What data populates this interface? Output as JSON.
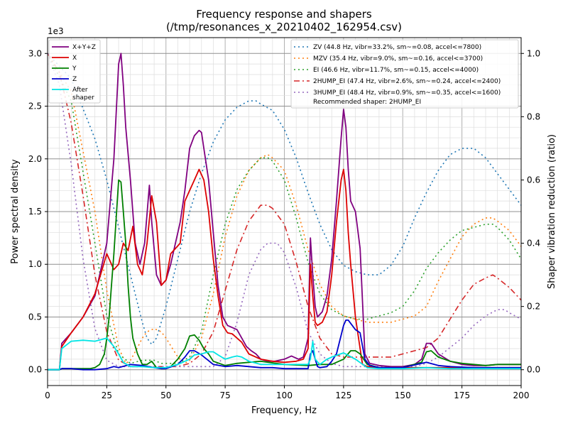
{
  "chart_data": {
    "type": "line",
    "title": "Frequency response and shapers",
    "subtitle": "(/tmp/resonances_x_20210402_162954.csv)",
    "xlabel": "Frequency, Hz",
    "ylabel": "Power spectral density",
    "y2label": "Shaper vibration reduction (ratio)",
    "y_multiplier_label": "1e3",
    "xlim": [
      0,
      200
    ],
    "ylim": [
      -0.15,
      3.15
    ],
    "y2lim": [
      -0.05,
      1.05
    ],
    "xticks": [
      0,
      25,
      50,
      75,
      100,
      125,
      150,
      175,
      200
    ],
    "xtick_labels": [
      "0",
      "25",
      "50",
      "75",
      "100",
      "125",
      "150",
      "175",
      "200"
    ],
    "yticks": [
      0,
      0.5,
      1.0,
      1.5,
      2.0,
      2.5,
      3.0
    ],
    "ytick_labels": [
      "0.0",
      "0.5",
      "1.0",
      "1.5",
      "2.0",
      "2.5",
      "3.0"
    ],
    "y2ticks": [
      0,
      0.2,
      0.4,
      0.6,
      0.8,
      1.0
    ],
    "y2tick_labels": [
      "0.0",
      "0.2",
      "0.4",
      "0.6",
      "0.8",
      "1.0"
    ],
    "grid": true,
    "psd_series": [
      {
        "name": "X+Y+Z",
        "color": "#800080",
        "x": [
          0,
          5,
          6,
          10,
          15,
          20,
          25,
          28,
          30,
          31,
          32,
          33,
          35,
          37,
          39,
          41,
          43,
          44,
          46,
          48,
          50,
          52,
          54,
          56,
          58,
          60,
          62,
          64,
          65,
          66,
          68,
          70,
          72,
          74,
          76,
          78,
          80,
          82,
          84,
          86,
          88,
          90,
          93,
          96,
          100,
          103,
          106,
          108,
          110,
          111,
          112,
          113,
          114,
          116,
          118,
          120,
          122,
          124,
          125,
          126,
          127,
          128,
          130,
          132,
          134,
          136,
          140,
          145,
          150,
          155,
          158,
          160,
          162,
          165,
          170,
          175,
          180,
          185,
          190,
          195,
          200
        ],
        "y": [
          0,
          0,
          0.25,
          0.35,
          0.5,
          0.7,
          1.2,
          2.0,
          2.9,
          3.0,
          2.7,
          2.3,
          1.8,
          1.2,
          1.0,
          1.2,
          1.75,
          1.4,
          0.9,
          0.8,
          0.85,
          1.0,
          1.2,
          1.4,
          1.7,
          2.1,
          2.22,
          2.27,
          2.25,
          2.1,
          1.8,
          1.3,
          0.8,
          0.5,
          0.42,
          0.4,
          0.38,
          0.3,
          0.22,
          0.18,
          0.15,
          0.1,
          0.08,
          0.08,
          0.1,
          0.13,
          0.1,
          0.12,
          0.3,
          1.25,
          0.9,
          0.6,
          0.5,
          0.55,
          0.7,
          1.05,
          1.6,
          2.2,
          2.47,
          2.3,
          1.9,
          1.6,
          1.5,
          1.15,
          0.15,
          0.06,
          0.04,
          0.03,
          0.03,
          0.05,
          0.1,
          0.25,
          0.25,
          0.15,
          0.08,
          0.05,
          0.04,
          0.04,
          0.05,
          0.05,
          0.05
        ]
      },
      {
        "name": "X",
        "color": "#dd0000",
        "x": [
          0,
          5,
          6,
          10,
          15,
          20,
          25,
          28,
          30,
          32,
          34,
          36,
          38,
          40,
          42,
          44,
          46,
          48,
          50,
          52,
          54,
          56,
          58,
          60,
          62,
          64,
          65,
          66,
          68,
          70,
          72,
          74,
          76,
          78,
          80,
          82,
          85,
          90,
          95,
          100,
          105,
          108,
          110,
          111,
          112,
          113,
          114,
          116,
          118,
          120,
          122,
          124,
          125,
          126,
          127,
          128,
          130,
          132,
          133,
          135,
          140,
          150,
          160,
          170,
          180,
          190,
          200
        ],
        "y": [
          0,
          0,
          0.22,
          0.35,
          0.5,
          0.72,
          1.1,
          0.95,
          1.0,
          1.2,
          1.13,
          1.36,
          1.0,
          0.9,
          1.2,
          1.65,
          1.4,
          0.8,
          0.85,
          1.1,
          1.15,
          1.2,
          1.6,
          1.7,
          1.8,
          1.9,
          1.85,
          1.8,
          1.5,
          1.05,
          0.7,
          0.42,
          0.35,
          0.34,
          0.3,
          0.26,
          0.15,
          0.1,
          0.08,
          0.07,
          0.08,
          0.1,
          0.2,
          1.0,
          0.7,
          0.45,
          0.42,
          0.45,
          0.55,
          0.9,
          1.4,
          1.8,
          1.9,
          1.7,
          1.3,
          1.0,
          0.5,
          0.2,
          0.05,
          0.03,
          0.02,
          0.02,
          0.02,
          0.02,
          0.02,
          0.02,
          0.02
        ]
      },
      {
        "name": "Y",
        "color": "#008000",
        "x": [
          0,
          5,
          6,
          10,
          15,
          18,
          20,
          22,
          24,
          25,
          26,
          27,
          28,
          30,
          31,
          32,
          33,
          34,
          35,
          36,
          38,
          40,
          42,
          44,
          46,
          48,
          50,
          52,
          55,
          58,
          60,
          62,
          64,
          66,
          68,
          70,
          75,
          80,
          90,
          100,
          110,
          115,
          120,
          125,
          128,
          130,
          132,
          135,
          140,
          150,
          158,
          160,
          162,
          165,
          170,
          175,
          180,
          185,
          190,
          195,
          200
        ],
        "y": [
          0,
          0,
          0.01,
          0.01,
          0.01,
          0.01,
          0.02,
          0.05,
          0.15,
          0.3,
          0.5,
          0.8,
          1.1,
          1.8,
          1.78,
          1.5,
          1.2,
          0.8,
          0.5,
          0.3,
          0.15,
          0.05,
          0.05,
          0.08,
          0.02,
          0.01,
          0.01,
          0.03,
          0.1,
          0.2,
          0.32,
          0.33,
          0.28,
          0.2,
          0.15,
          0.08,
          0.04,
          0.06,
          0.08,
          0.05,
          0.04,
          0.05,
          0.05,
          0.1,
          0.18,
          0.18,
          0.15,
          0.05,
          0.02,
          0.02,
          0.07,
          0.17,
          0.18,
          0.12,
          0.08,
          0.06,
          0.05,
          0.04,
          0.05,
          0.05,
          0.05
        ]
      },
      {
        "name": "Z",
        "color": "#0000cc",
        "x": [
          0,
          5,
          6,
          10,
          15,
          20,
          25,
          28,
          30,
          35,
          40,
          45,
          48,
          50,
          55,
          58,
          60,
          62,
          65,
          70,
          75,
          80,
          85,
          90,
          95,
          100,
          105,
          110,
          111,
          112,
          113,
          114,
          115,
          118,
          120,
          122,
          125,
          126,
          127,
          128,
          130,
          132,
          134,
          136,
          140,
          150,
          160,
          165,
          170,
          180,
          190,
          200
        ],
        "y": [
          0,
          0,
          0.01,
          0.01,
          0.0,
          0.0,
          0.01,
          0.03,
          0.02,
          0.05,
          0.04,
          0.02,
          0.01,
          0.01,
          0.05,
          0.12,
          0.18,
          0.18,
          0.14,
          0.05,
          0.03,
          0.04,
          0.03,
          0.02,
          0.02,
          0.01,
          0.01,
          0.01,
          0.15,
          0.18,
          0.1,
          0.03,
          0.02,
          0.03,
          0.08,
          0.15,
          0.42,
          0.47,
          0.47,
          0.44,
          0.38,
          0.35,
          0.1,
          0.04,
          0.02,
          0.02,
          0.07,
          0.04,
          0.03,
          0.02,
          0.02,
          0.02
        ]
      },
      {
        "name": "After\nshaper",
        "color": "#00e5e5",
        "x": [
          0,
          5,
          6,
          10,
          15,
          20,
          25,
          28,
          30,
          32,
          35,
          40,
          45,
          50,
          55,
          60,
          62,
          65,
          68,
          70,
          72,
          75,
          78,
          80,
          82,
          85,
          90,
          100,
          110,
          111,
          112,
          113,
          115,
          118,
          120,
          125,
          130,
          135,
          140,
          150,
          160,
          170,
          180,
          190,
          200
        ],
        "y": [
          0,
          0,
          0.2,
          0.27,
          0.28,
          0.27,
          0.3,
          0.22,
          0.15,
          0.07,
          0.03,
          0.03,
          0.02,
          0.02,
          0.05,
          0.1,
          0.14,
          0.15,
          0.17,
          0.17,
          0.14,
          0.1,
          0.12,
          0.13,
          0.12,
          0.08,
          0.05,
          0.05,
          0.05,
          0.1,
          0.27,
          0.1,
          0.05,
          0.1,
          0.12,
          0.16,
          0.1,
          0.02,
          0.01,
          0.01,
          0.02,
          0.01,
          0.01,
          0.01,
          0.01
        ]
      }
    ],
    "shaper_series": [
      {
        "name": "ZV (44.8 Hz, vibr=33.2%, sm~=0.08, accel<=7800)",
        "color": "#1f77b4",
        "dash": "2,4",
        "x": [
          0,
          10,
          20,
          25,
          30,
          35,
          40,
          42,
          44,
          46,
          50,
          55,
          60,
          65,
          70,
          75,
          80,
          85,
          88,
          90,
          95,
          100,
          105,
          110,
          115,
          120,
          125,
          130,
          135,
          140,
          145,
          150,
          155,
          160,
          165,
          170,
          175,
          180,
          185,
          190,
          195,
          200
        ],
        "y": [
          1.0,
          0.92,
          0.73,
          0.6,
          0.45,
          0.3,
          0.15,
          0.1,
          0.08,
          0.1,
          0.2,
          0.35,
          0.5,
          0.62,
          0.72,
          0.79,
          0.83,
          0.85,
          0.85,
          0.84,
          0.82,
          0.76,
          0.67,
          0.56,
          0.46,
          0.38,
          0.33,
          0.31,
          0.3,
          0.3,
          0.33,
          0.39,
          0.48,
          0.56,
          0.63,
          0.68,
          0.7,
          0.7,
          0.67,
          0.62,
          0.57,
          0.52
        ]
      },
      {
        "name": "MZV (35.4 Hz, vibr=9.0%, sm~=0.16, accel<=3700)",
        "color": "#ff7f0e",
        "dash": "2,4",
        "x": [
          0,
          10,
          20,
          25,
          30,
          33,
          35,
          38,
          40,
          42,
          45,
          48,
          50,
          55,
          58,
          60,
          65,
          70,
          75,
          80,
          85,
          90,
          93,
          95,
          100,
          105,
          110,
          115,
          120,
          125,
          130,
          135,
          140,
          145,
          150,
          155,
          160,
          165,
          170,
          175,
          180,
          185,
          188,
          190,
          195,
          200
        ],
        "y": [
          1.0,
          0.88,
          0.5,
          0.25,
          0.07,
          0.02,
          0.03,
          0.07,
          0.1,
          0.12,
          0.13,
          0.12,
          0.1,
          0.04,
          0.02,
          0.03,
          0.1,
          0.24,
          0.42,
          0.55,
          0.63,
          0.67,
          0.68,
          0.67,
          0.63,
          0.52,
          0.38,
          0.27,
          0.2,
          0.17,
          0.16,
          0.15,
          0.15,
          0.15,
          0.16,
          0.17,
          0.2,
          0.28,
          0.35,
          0.42,
          0.46,
          0.48,
          0.48,
          0.47,
          0.44,
          0.39
        ]
      },
      {
        "name": "EI (46.6 Hz, vibr=11.7%, sm~=0.15, accel<=4000)",
        "color": "#2ca02c",
        "dash": "2,4",
        "x": [
          0,
          10,
          20,
          25,
          30,
          35,
          40,
          45,
          48,
          50,
          55,
          60,
          65,
          70,
          75,
          80,
          85,
          90,
          93,
          95,
          100,
          105,
          110,
          115,
          120,
          125,
          130,
          135,
          140,
          145,
          150,
          155,
          160,
          165,
          170,
          175,
          180,
          185,
          188,
          190,
          195,
          200
        ],
        "y": [
          1.0,
          0.85,
          0.4,
          0.17,
          0.05,
          0.02,
          0.03,
          0.03,
          0.02,
          0.02,
          0.02,
          0.04,
          0.12,
          0.3,
          0.46,
          0.57,
          0.63,
          0.67,
          0.67,
          0.66,
          0.6,
          0.48,
          0.34,
          0.24,
          0.19,
          0.17,
          0.16,
          0.16,
          0.17,
          0.18,
          0.2,
          0.25,
          0.32,
          0.37,
          0.41,
          0.44,
          0.45,
          0.46,
          0.46,
          0.45,
          0.41,
          0.35
        ]
      },
      {
        "name": "2HUMP_EI (47.4 Hz, vibr=2.6%, sm~=0.24, accel<=2400)",
        "color": "#d62728",
        "dash": "8,4,2,4",
        "x": [
          0,
          5,
          10,
          15,
          20,
          25,
          30,
          35,
          40,
          45,
          50,
          55,
          60,
          65,
          70,
          75,
          80,
          85,
          90,
          93,
          95,
          100,
          105,
          110,
          115,
          120,
          125,
          130,
          135,
          140,
          145,
          150,
          155,
          160,
          165,
          170,
          175,
          180,
          185,
          188,
          190,
          195,
          200
        ],
        "y": [
          1.0,
          0.94,
          0.78,
          0.55,
          0.3,
          0.12,
          0.03,
          0.01,
          0.01,
          0.01,
          0.01,
          0.01,
          0.02,
          0.05,
          0.12,
          0.25,
          0.38,
          0.47,
          0.52,
          0.52,
          0.51,
          0.46,
          0.34,
          0.2,
          0.1,
          0.05,
          0.04,
          0.04,
          0.04,
          0.04,
          0.04,
          0.05,
          0.06,
          0.07,
          0.1,
          0.16,
          0.22,
          0.27,
          0.29,
          0.3,
          0.29,
          0.26,
          0.22
        ]
      },
      {
        "name": "3HUMP_EI (48.4 Hz, vibr=0.9%, sm~=0.35, accel<=1600)",
        "color": "#9467bd",
        "dash": "2,4",
        "x": [
          0,
          5,
          10,
          15,
          20,
          25,
          30,
          35,
          40,
          45,
          50,
          55,
          60,
          65,
          70,
          75,
          80,
          85,
          90,
          93,
          95,
          97,
          100,
          105,
          110,
          115,
          120,
          125,
          130,
          135,
          140,
          145,
          150,
          155,
          160,
          165,
          170,
          175,
          180,
          185,
          190,
          193,
          195,
          200
        ],
        "y": [
          1.0,
          0.9,
          0.65,
          0.35,
          0.13,
          0.03,
          0.01,
          0.01,
          0.01,
          0.01,
          0.01,
          0.01,
          0.01,
          0.01,
          0.01,
          0.04,
          0.15,
          0.3,
          0.38,
          0.4,
          0.4,
          0.4,
          0.37,
          0.26,
          0.12,
          0.05,
          0.02,
          0.01,
          0.01,
          0.01,
          0.01,
          0.01,
          0.01,
          0.01,
          0.02,
          0.04,
          0.07,
          0.1,
          0.14,
          0.17,
          0.19,
          0.19,
          0.18,
          0.16
        ]
      }
    ],
    "recommendation": "Recommended shaper: 2HUMP_EI"
  }
}
